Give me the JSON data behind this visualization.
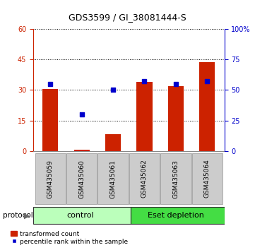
{
  "title": "GDS3599 / GI_38081444-S",
  "samples": [
    "GSM435059",
    "GSM435060",
    "GSM435061",
    "GSM435062",
    "GSM435063",
    "GSM435064"
  ],
  "red_values": [
    30.5,
    0.8,
    8.5,
    34.0,
    32.0,
    43.5
  ],
  "blue_pct": [
    55.0,
    30.0,
    50.0,
    57.0,
    55.0,
    57.0
  ],
  "red_ylim": [
    0,
    60
  ],
  "blue_ylim": [
    0,
    100
  ],
  "red_yticks": [
    0,
    15,
    30,
    45,
    60
  ],
  "blue_yticks": [
    0,
    25,
    50,
    75,
    100
  ],
  "blue_yticklabels": [
    "0",
    "25",
    "50",
    "75",
    "100%"
  ],
  "red_color": "#cc2200",
  "blue_color": "#0000cc",
  "bar_width": 0.5,
  "protocol_label": "protocol",
  "legend_red": "transformed count",
  "legend_blue": "percentile rank within the sample",
  "bg_xticklabel": "#cccccc",
  "bg_group_light": "#bbffbb",
  "bg_group_dark": "#44dd44",
  "title_fontsize": 9,
  "tick_fontsize": 7,
  "label_fontsize": 6.5,
  "group_fontsize": 8
}
